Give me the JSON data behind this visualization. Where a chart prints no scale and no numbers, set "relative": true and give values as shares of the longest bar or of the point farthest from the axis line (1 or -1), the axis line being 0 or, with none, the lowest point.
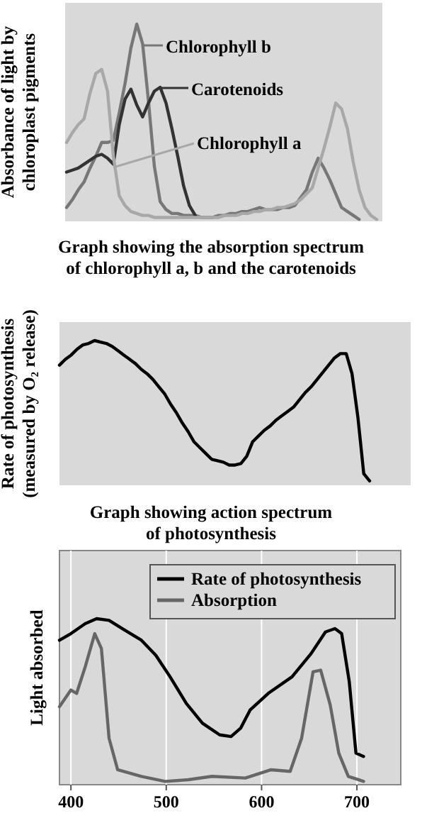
{
  "chart_data": [
    {
      "type": "line",
      "title": "Graph showing the absorption spectrum\nof chlorophyll a, b and the carotenoids",
      "ylabel": "Absorbance of light by\nchloroplast pigments",
      "relative": true,
      "tick_labels": false,
      "legend": "top",
      "categories": [
        null,
        null,
        null,
        null,
        null,
        null,
        null,
        null,
        null,
        null,
        null,
        null,
        null,
        null,
        null,
        null,
        null,
        null,
        null,
        null,
        null,
        null,
        null,
        null,
        null,
        null,
        null,
        null,
        null,
        null,
        null,
        null,
        null,
        null,
        null,
        null,
        null,
        null,
        null,
        null,
        null,
        null,
        null,
        null,
        null,
        null,
        null,
        null,
        null,
        null,
        null,
        null,
        null,
        null
      ],
      "series": [
        {
          "name": "Chlorophyll b",
          "color": "#777777",
          "values": [
            0.07,
            0.11,
            0.16,
            0.2,
            0.27,
            0.33,
            0.4,
            0.4,
            0.41,
            0.55,
            0.7,
            0.88,
            1.0,
            0.9,
            0.61,
            0.28,
            0.1,
            0.06,
            0.04,
            0.04,
            0.03,
            0.03,
            0.03,
            0.02,
            0.02,
            0.02,
            0.03,
            0.03,
            0.04,
            0.04,
            0.05,
            0.05,
            0.06,
            0.07,
            0.06,
            0.06,
            0.06,
            0.07,
            0.07,
            0.08,
            0.12,
            0.16,
            0.25,
            0.32,
            0.27,
            0.21,
            0.14,
            0.07,
            0.05,
            0.03,
            0.01,
            null,
            null,
            null
          ]
        },
        {
          "name": "Carotenoids",
          "color": "#333333",
          "values": [
            0.25,
            0.26,
            0.27,
            0.29,
            0.31,
            0.33,
            0.34,
            0.32,
            0.29,
            0.49,
            0.62,
            0.67,
            0.59,
            0.53,
            0.6,
            0.66,
            0.68,
            0.6,
            0.47,
            0.33,
            0.18,
            0.08,
            0.03,
            null,
            null,
            null,
            null,
            null,
            null,
            null,
            null,
            null,
            null,
            null,
            null,
            null,
            null,
            null,
            null,
            null,
            null,
            null,
            null,
            null,
            null,
            null,
            null,
            null,
            null,
            null,
            null,
            null,
            null,
            null
          ]
        },
        {
          "name": "Chlorophyll a",
          "color": "#a8a8a8",
          "values": [
            0.4,
            0.45,
            0.49,
            0.52,
            0.65,
            0.75,
            0.77,
            0.66,
            0.33,
            0.13,
            0.08,
            0.05,
            0.04,
            0.03,
            0.03,
            0.02,
            0.02,
            0.02,
            0.02,
            0.02,
            0.02,
            0.02,
            0.02,
            0.02,
            0.02,
            0.02,
            0.02,
            0.03,
            0.03,
            0.03,
            0.04,
            0.04,
            0.05,
            0.05,
            0.06,
            0.06,
            0.07,
            0.07,
            0.08,
            0.09,
            0.11,
            0.14,
            0.17,
            0.27,
            0.37,
            0.48,
            0.6,
            0.57,
            0.47,
            0.3,
            0.16,
            0.07,
            0.03,
            0.01
          ]
        }
      ]
    },
    {
      "type": "line",
      "title": "Graph showing action spectrum\nof photosynthesis",
      "ylabel": "Rate of photosynthesis\n(measured by O₂ release)",
      "relative": true,
      "tick_labels": false,
      "legend": false,
      "categories": [
        null,
        null,
        null,
        null,
        null,
        null,
        null,
        null,
        null,
        null,
        null,
        null,
        null,
        null,
        null,
        null,
        null,
        null,
        null,
        null,
        null,
        null,
        null,
        null,
        null,
        null,
        null,
        null,
        null,
        null,
        null,
        null,
        null,
        null,
        null,
        null,
        null,
        null,
        null,
        null,
        null,
        null,
        null,
        null,
        null,
        null,
        null,
        null,
        null,
        null,
        null,
        null,
        null,
        null
      ],
      "series": [
        {
          "color": "#000000",
          "values": [
            0.83,
            0.87,
            0.9,
            0.94,
            0.97,
            0.98,
            1.0,
            0.99,
            0.98,
            0.96,
            0.93,
            0.9,
            0.87,
            0.84,
            0.8,
            0.77,
            0.73,
            0.68,
            0.63,
            0.56,
            0.5,
            0.43,
            0.37,
            0.3,
            0.26,
            0.22,
            0.18,
            0.17,
            0.16,
            0.14,
            0.14,
            0.15,
            0.2,
            0.3,
            0.34,
            0.38,
            0.41,
            0.45,
            0.48,
            0.51,
            0.54,
            0.59,
            0.64,
            0.68,
            0.73,
            0.78,
            0.83,
            0.88,
            0.91,
            0.91,
            0.77,
            0.47,
            0.08,
            0.03
          ]
        }
      ]
    },
    {
      "type": "line",
      "ylabel": "Light absorbed",
      "relative": true,
      "xlim": [
        388,
        746
      ],
      "xticks": [
        400,
        500,
        600,
        700
      ],
      "tick_labels": "x",
      "grid": "x",
      "legend": "top right",
      "series": [
        {
          "name": "Rate of photosynthesis",
          "color": "#000000",
          "x": [
            388,
            400,
            415,
            427,
            440,
            454,
            474,
            489,
            504,
            521,
            538,
            556,
            568,
            578,
            588,
            607,
            632,
            652,
            667,
            677,
            684,
            692,
            699,
            707
          ],
          "values": [
            0.87,
            0.91,
            0.97,
            1.0,
            0.99,
            0.94,
            0.87,
            0.78,
            0.65,
            0.49,
            0.37,
            0.3,
            0.29,
            0.34,
            0.45,
            0.55,
            0.65,
            0.79,
            0.92,
            0.94,
            0.91,
            0.62,
            0.19,
            0.17
          ]
        },
        {
          "name": "Absorption",
          "color": "#666666",
          "x": [
            388,
            400,
            406,
            415,
            425,
            432,
            440,
            449,
            474,
            499,
            523,
            548,
            583,
            610,
            630,
            642,
            654,
            662,
            672,
            681,
            691,
            707
          ],
          "values": [
            0.47,
            0.57,
            0.55,
            0.71,
            0.91,
            0.82,
            0.28,
            0.09,
            0.05,
            0.02,
            0.03,
            0.05,
            0.04,
            0.09,
            0.08,
            0.28,
            0.68,
            0.69,
            0.48,
            0.19,
            0.05,
            0.02
          ]
        }
      ]
    }
  ]
}
